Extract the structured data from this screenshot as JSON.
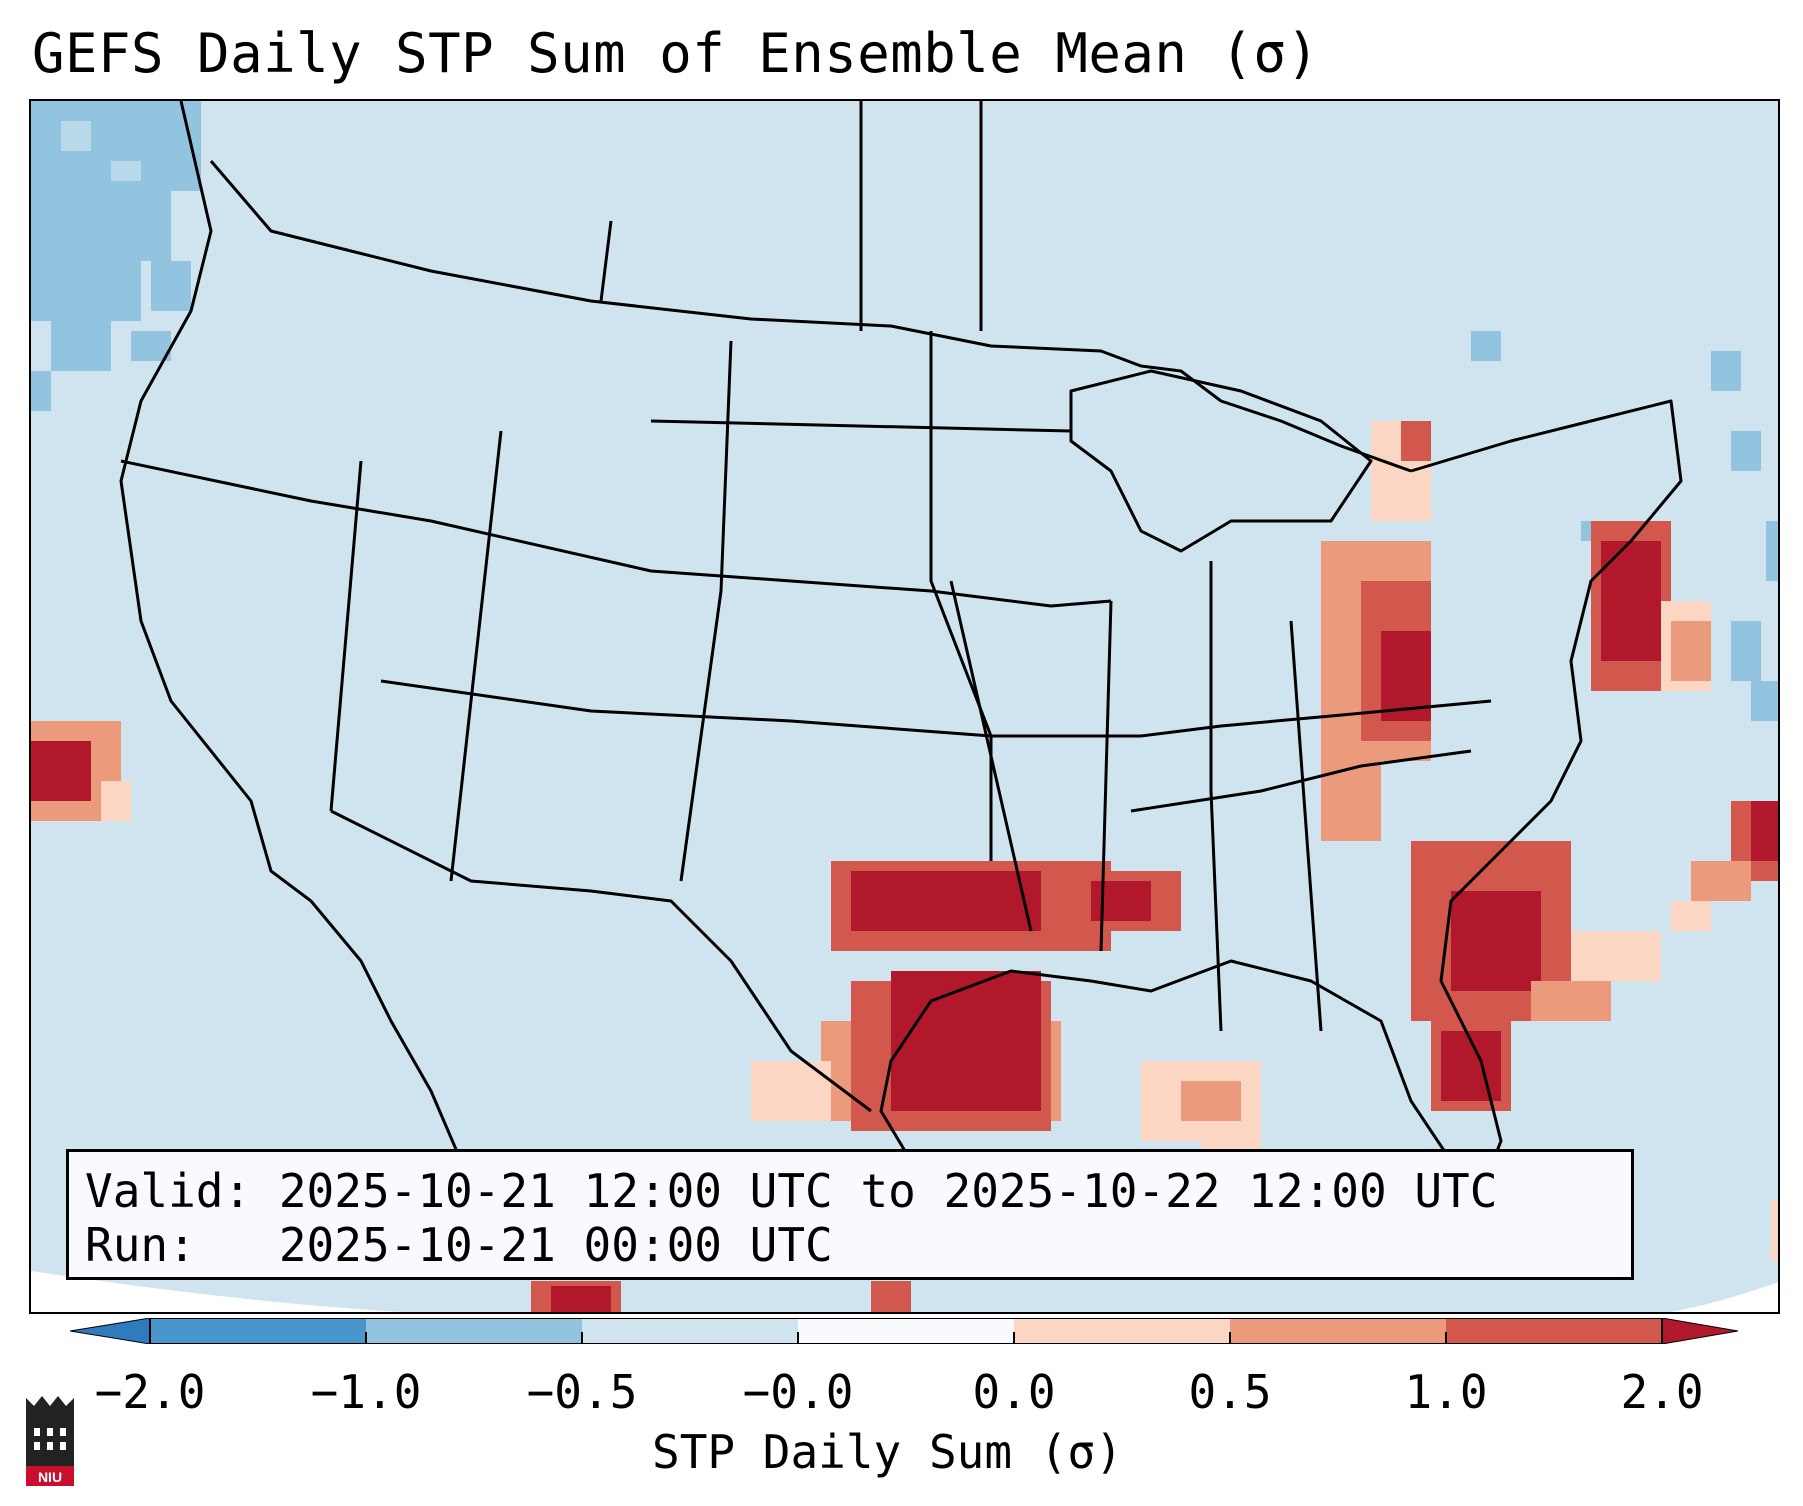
{
  "title": "GEFS Daily STP Sum of Ensemble Mean (σ)",
  "info": {
    "valid_line": "Valid: 2025-10-21 12:00 UTC to 2025-10-22 12:00 UTC",
    "run_line": "Run:   2025-10-21 00:00 UTC"
  },
  "colorbar": {
    "label": "STP Daily Sum (σ)",
    "ticks": [
      "−2.0",
      "−1.0",
      "−0.5",
      "−0.0",
      "0.0",
      "0.5",
      "1.0",
      "2.0"
    ],
    "colors": [
      "#2f7bbd",
      "#4896cb",
      "#92c4df",
      "#d0e4f0",
      "#f8fafd",
      "#fbd6c3",
      "#ec9a7c",
      "#d2574d",
      "#b2182b"
    ]
  },
  "logo": {
    "icon": "niu-university-logo",
    "text": "NIU"
  },
  "map": {
    "region": "contiguous-united-states",
    "background_color": "#d0e4f0",
    "anomaly_areas": [
      {
        "name": "texas-gulf-coast",
        "level": "above 2.0"
      },
      {
        "name": "louisiana",
        "level": "above 2.0"
      },
      {
        "name": "florida-georgia-coast",
        "level": "above 2.0"
      },
      {
        "name": "ohio-valley-west-virginia",
        "level": "above 2.0"
      },
      {
        "name": "new-jersey-coast",
        "level": "above 2.0"
      },
      {
        "name": "pacific-offshore",
        "level": "above 2.0"
      },
      {
        "name": "atlantic-offshore",
        "level": "1.0 to 2.0"
      },
      {
        "name": "pacific-northwest-offshore",
        "level": "below -0.5"
      }
    ]
  }
}
